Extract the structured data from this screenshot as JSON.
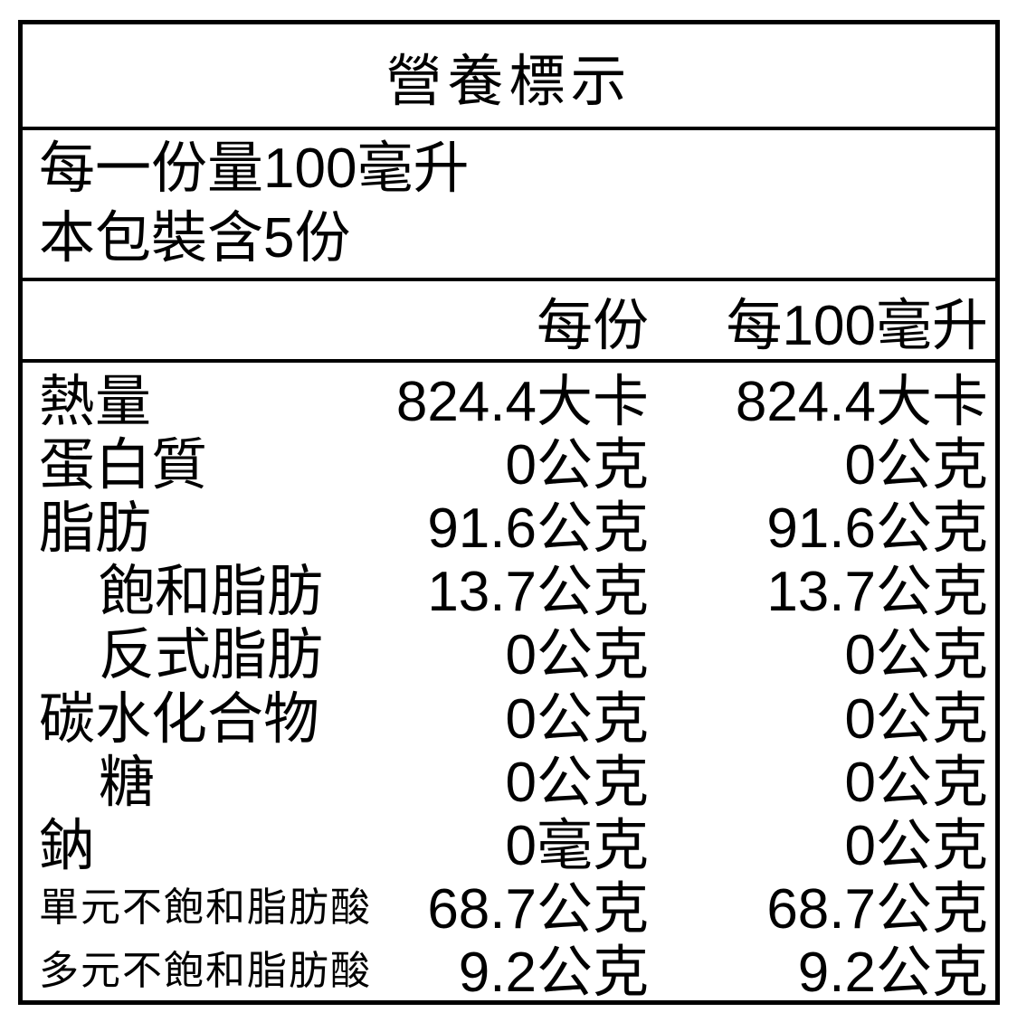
{
  "title": "營養標示",
  "serving": {
    "line1": "每一份量100毫升",
    "line2": "本包裝含5份"
  },
  "columns": {
    "col1": "每份",
    "col2": "每100毫升"
  },
  "rows": [
    {
      "label": "熱量",
      "indent": false,
      "small": false,
      "v1": "824.4大卡",
      "v2": "824.4大卡"
    },
    {
      "label": "蛋白質",
      "indent": false,
      "small": false,
      "v1": "0公克",
      "v2": "0公克"
    },
    {
      "label": "脂肪",
      "indent": false,
      "small": false,
      "v1": "91.6公克",
      "v2": "91.6公克"
    },
    {
      "label": "飽和脂肪",
      "indent": true,
      "small": false,
      "v1": "13.7公克",
      "v2": "13.7公克"
    },
    {
      "label": "反式脂肪",
      "indent": true,
      "small": false,
      "v1": "0公克",
      "v2": "0公克"
    },
    {
      "label": "碳水化合物",
      "indent": false,
      "small": false,
      "v1": "0公克",
      "v2": "0公克"
    },
    {
      "label": "糖",
      "indent": true,
      "small": false,
      "v1": "0公克",
      "v2": "0公克"
    },
    {
      "label": "鈉",
      "indent": false,
      "small": false,
      "v1": "0毫克",
      "v2": "0公克"
    },
    {
      "label": "單元不飽和脂肪酸",
      "indent": false,
      "small": true,
      "v1": "68.7公克",
      "v2": "68.7公克"
    },
    {
      "label": "多元不飽和脂肪酸",
      "indent": false,
      "small": true,
      "v1": "9.2公克",
      "v2": "9.2公克"
    }
  ],
  "colors": {
    "border": "#000000",
    "background": "#ffffff",
    "text": "#000000"
  }
}
